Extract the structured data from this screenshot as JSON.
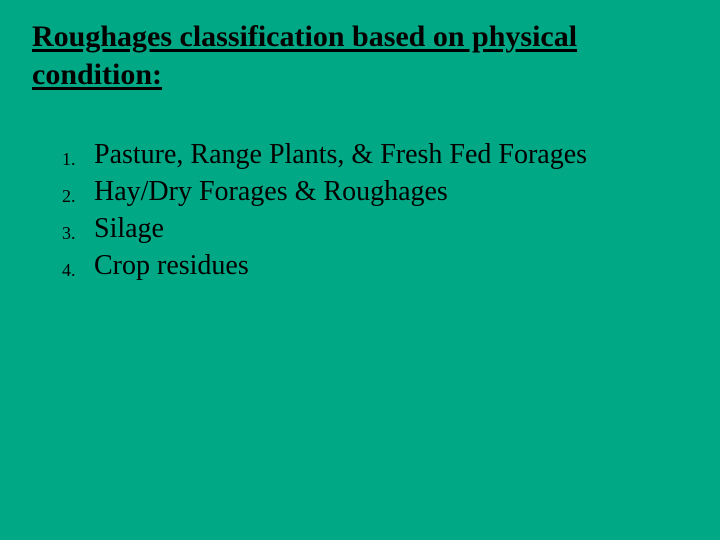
{
  "slide": {
    "background_color": "#00a885",
    "text_color": "#000000",
    "font_family": "Times New Roman",
    "title": {
      "text": "Roughages classification based on physical condition:",
      "font_size": 30,
      "bold": true,
      "underline": true
    },
    "list": {
      "type": "ordered",
      "item_font_size": 28,
      "marker_font_size": 18,
      "items": [
        "Pasture, Range Plants, & Fresh Fed Forages",
        "Hay/Dry Forages & Roughages",
        "Silage",
        "Crop residues"
      ]
    }
  }
}
